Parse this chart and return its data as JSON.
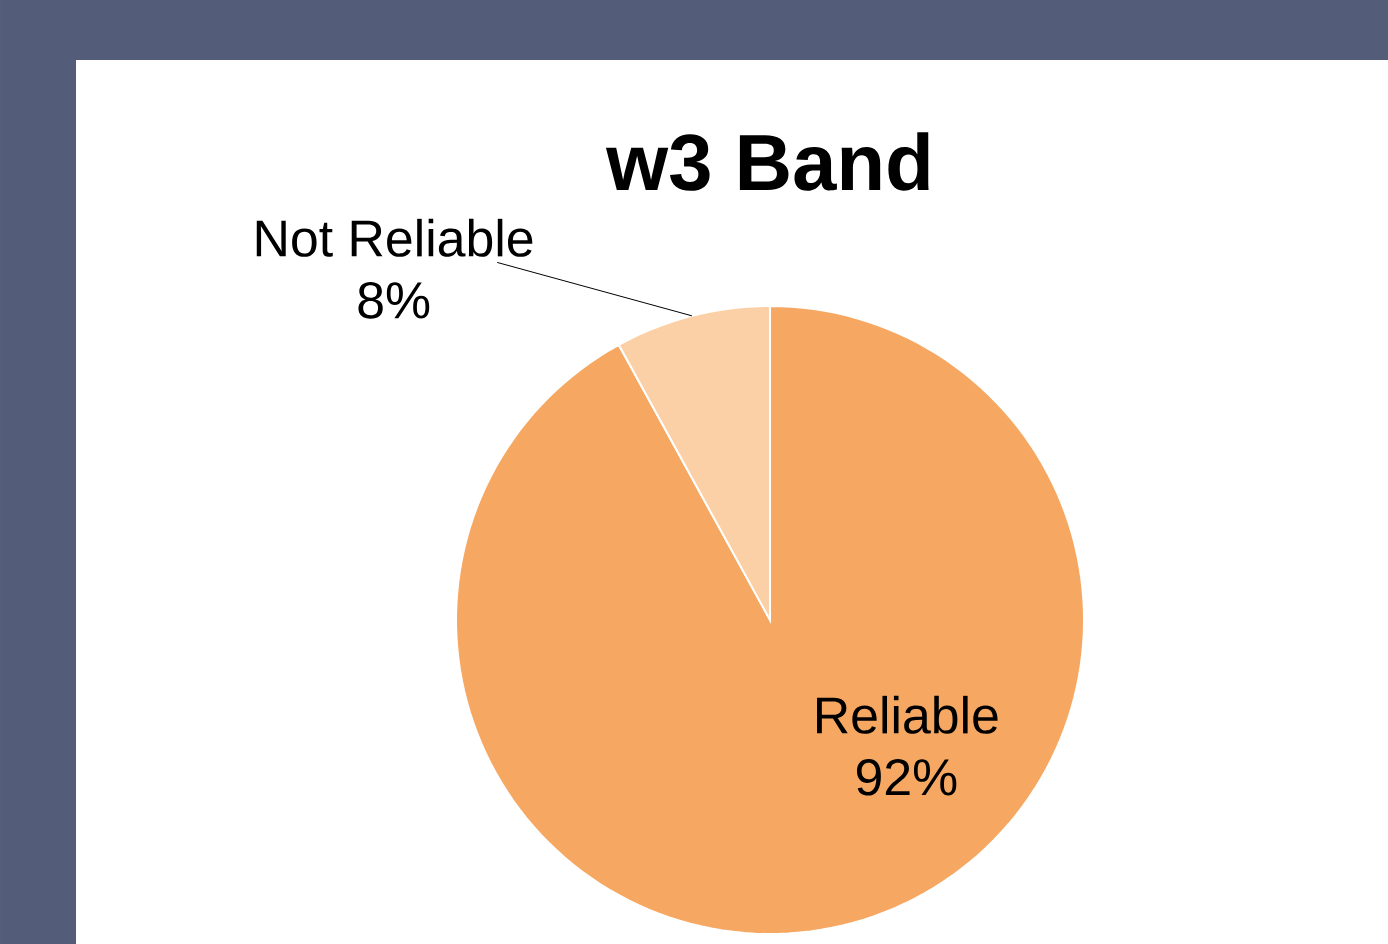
{
  "chart_data": {
    "type": "pie",
    "title": "w3 Band",
    "categories": [
      "Reliable",
      "Not Reliable"
    ],
    "values": [
      92,
      8
    ],
    "value_labels": [
      "92%",
      "8%"
    ],
    "colors": [
      "#f6a862",
      "#fcd0a6"
    ]
  }
}
